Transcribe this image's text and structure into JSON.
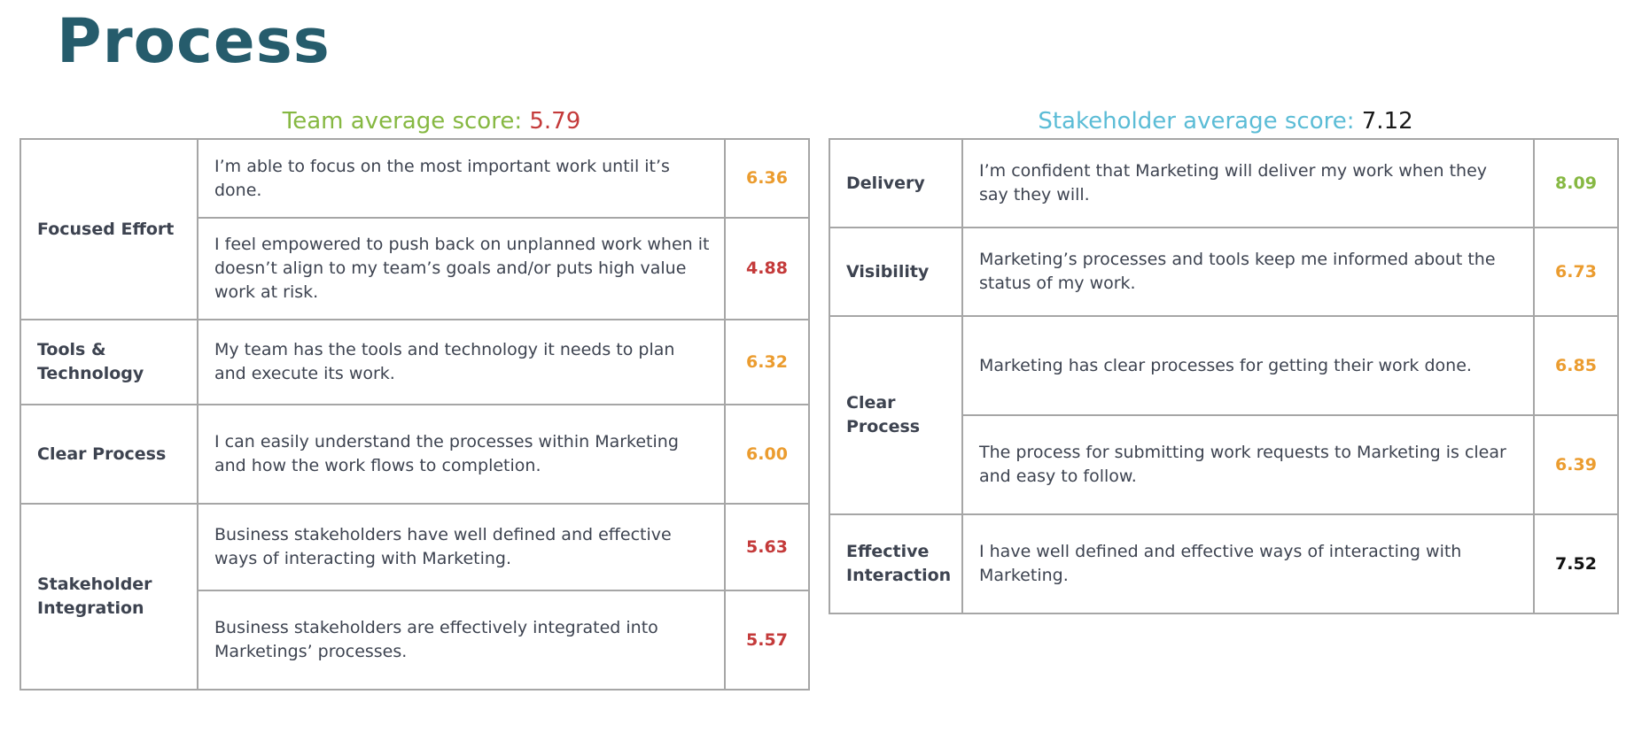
{
  "title": "Process",
  "team": {
    "label": "Team average score:",
    "value": "5.79",
    "rows": [
      {
        "category": "Focused Effort",
        "statement": "I’m able to focus on the most important work until it’s done.",
        "score": "6.36"
      },
      {
        "category": "Focused Effort",
        "statement": "I feel empowered to push back on unplanned work when it doesn’t align to my team’s goals and/or puts high value work at risk.",
        "score": "4.88"
      },
      {
        "category": "Tools & Technology",
        "statement": "My team has the tools and technology it needs to plan and execute its work.",
        "score": "6.32"
      },
      {
        "category": "Clear Process",
        "statement": "I can easily understand the processes within Marketing and how the work flows to completion.",
        "score": "6.00"
      },
      {
        "category": "Stakeholder Integration",
        "statement": "Business stakeholders have well defined and effective ways of interacting with Marketing.",
        "score": "5.63"
      },
      {
        "category": "Stakeholder Integration",
        "statement": "Business stakeholders are effectively integrated into Marketings’ processes.",
        "score": "5.57"
      }
    ]
  },
  "stakeholder": {
    "label": "Stakeholder average score:",
    "value": "7.12",
    "rows": [
      {
        "category": "Delivery",
        "statement": "I’m confident that Marketing will deliver my work when they say they will.",
        "score": "8.09"
      },
      {
        "category": "Visibility",
        "statement": "Marketing’s processes and tools keep me informed about the status of my work.",
        "score": "6.73"
      },
      {
        "category": "Clear Process",
        "statement": "Marketing has clear processes for getting their work done.",
        "score": "6.85"
      },
      {
        "category": "Clear Process",
        "statement": "The process for submitting work requests to Marketing is clear and easy to follow.",
        "score": "6.39"
      },
      {
        "category": "Effective Interaction",
        "statement": "I have well defined and effective ways of interacting with Marketing.",
        "score": "7.52"
      }
    ]
  },
  "colors": {
    "title": "#265c6c",
    "team_label": "#86b842",
    "stakeholder_label": "#5bbcd6",
    "low_score": "#c43a3a",
    "mid_score": "#eb9c2f",
    "high_score": "#86b842",
    "top_score": "#111111",
    "border": "#a6a6a6",
    "text": "#3d4350"
  }
}
